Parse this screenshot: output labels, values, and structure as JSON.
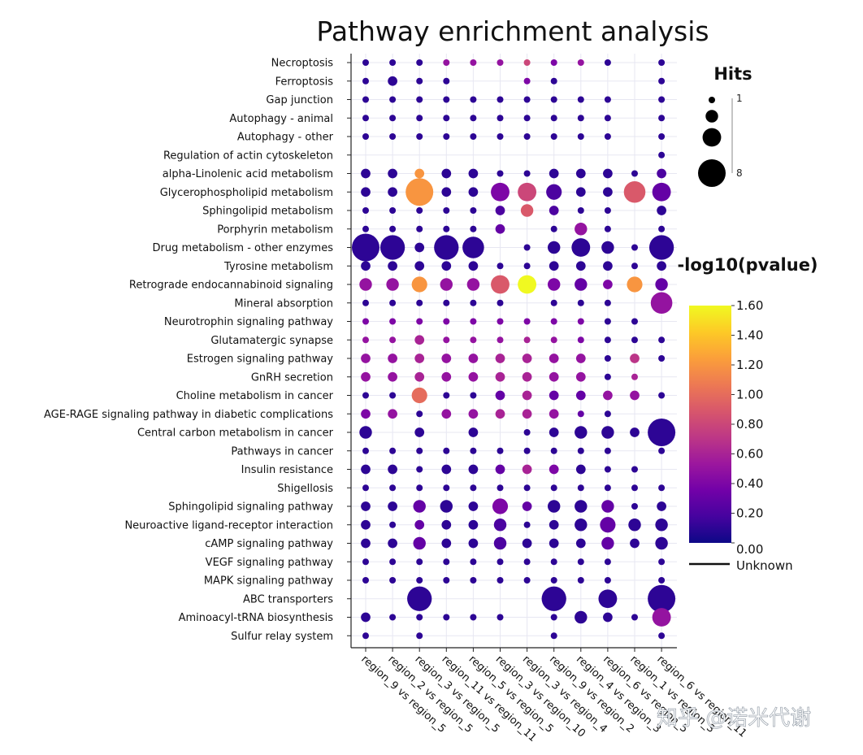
{
  "chart_data": {
    "type": "scatter",
    "title": "Pathway enrichment analysis",
    "pathways": [
      "Necroptosis",
      "Ferroptosis",
      "Gap junction",
      "Autophagy - animal",
      "Autophagy - other",
      "Regulation of actin cytoskeleton",
      "alpha-Linolenic acid metabolism",
      "Glycerophospholipid metabolism",
      "Sphingolipid metabolism",
      "Porphyrin metabolism",
      "Drug metabolism - other enzymes",
      "Tyrosine metabolism",
      "Retrograde endocannabinoid signaling",
      "Mineral absorption",
      "Neurotrophin signaling pathway",
      "Glutamatergic synapse",
      "Estrogen signaling pathway",
      "GnRH secretion",
      "Choline metabolism in cancer",
      "AGE-RAGE signaling pathway in diabetic complications",
      "Central carbon metabolism in cancer",
      "Pathways in cancer",
      "Insulin resistance",
      "Shigellosis",
      "Sphingolipid signaling pathway",
      "Neuroactive ligand-receptor interaction",
      "cAMP signaling pathway",
      "VEGF signaling pathway",
      "MAPK signaling pathway",
      "ABC transporters",
      "Aminoacyl-tRNA biosynthesis",
      "Sulfur relay system"
    ],
    "comparisons": [
      "region_9 vs region_5",
      "region_2 vs region_5",
      "region_3 vs region_5",
      "region_11 vs region_11",
      "region_5 vs region_5",
      "region_3 vs region_10",
      "region_3 vs region_4",
      "region_9 vs region_2",
      "region_4 vs region_3",
      "region_6 vs region_5",
      "region_1 vs region_3",
      "region_6 vs region_11"
    ],
    "point_encoding": "hits:neglog10p",
    "points_rows": [
      "1:0.1 1:0.1 1:0.1 1:0.5 1:0.5 1:0.5 1:0.8 1:0.4 1:0.5 1:0.1 - 1:0.1",
      "1:0.1 2:0.1 1:0.1 1:0.1 - - 1:0.4 1:0.1 - - - 1:0.1",
      "1:0.1 1:0.1 1:0.1 1:0.1 1:0.1 1:0.1 1:0.1 1:0.1 1:0.1 1:0.1 - 1:0.1",
      "1:0.1 1:0.1 1:0.1 1:0.1 1:0.1 1:0.1 1:0.1 1:0.1 1:0.1 1:0.1 - 1:0.1",
      "1:0.1 1:0.1 1:0.1 1:0.1 1:0.1 1:0.1 1:0.1 1:0.1 1:0.1 1:0.1 - 1:0.1",
      "- - - - - - - - - - - 1:0.1",
      "2:0.1 2:0.1 2:1.2 2:0.1 2:0.1 1:0.1 1:0.1 2:0.1 2:0.1 2:0.1 1:0.1 2:0.2",
      "2:0.1 2:0.1 8:1.2 2:0.1 2:0.1 5:0.4 5:0.8 4:0.2 2:0.1 2:0.1 6:0.9 5:0.3",
      "1:0.1 1:0.1 1:0.1 1:0.1 1:0.1 2:0.2 3:0.9 2:0.2 1:0.1 1:0.1 - 2:0.1",
      "1:0.1 1:0.1 1:0.1 1:0.1 1:0.1 2:0.3 - 1:0.1 3:0.5 1:0.1 - 1:0.1",
      "8:0.1 7:0.1 2:0.1 7:0.1 6:0.1 - 1:0.1 3:0.1 5:0.1 3:0.1 1:0.1 7:0.1",
      "2:0.1 2:0.1 2:0.1 2:0.1 2:0.1 1:0.1 1:0.1 2:0.1 2:0.1 2:0.1 1:0.1 2:0.1",
      "3:0.5 3:0.5 4:1.2 3:0.5 3:0.5 5:0.9 5:1.6 3:0.4 3:0.3 2:0.4 4:1.2 3:0.3",
      "1:0.1 1:0.1 1:0.1 1:0.1 1:0.1 1:0.1 - 1:0.1 1:0.1 1:0.1 - 6:0.5",
      "1:0.4 1:0.4 1:0.4 1:0.4 1:0.4 1:0.4 1:0.4 1:0.4 1:0.4 1:0.1 1:0.1 -",
      "1:0.5 1:0.5 2:0.6 1:0.5 1:0.5 1:0.5 1:0.6 1:0.5 1:0.4 1:0.1 1:0.1 1:0.1",
      "2:0.5 2:0.5 2:0.6 2:0.5 2:0.5 2:0.6 2:0.6 2:0.5 2:0.5 1:0.1 2:0.7 1:0.1",
      "2:0.5 2:0.5 2:0.6 2:0.5 2:0.5 2:0.6 2:0.6 2:0.5 2:0.5 1:0.1 1:0.6 -",
      "1:0.1 1:0.1 4:1.0 1:0.1 1:0.1 2:0.3 2:0.6 2:0.3 2:0.3 2:0.5 2:0.5 1:0.1",
      "2:0.4 2:0.5 1:0.1 2:0.5 2:0.5 2:0.6 2:0.6 2:0.5 1:0.3 1:0.1 - -",
      "3:0.1 - 2:0.1 - 2:0.1 - 1:0.1 2:0.1 3:0.1 3:0.1 2:0.1 8:0.1",
      "1:0.1 1:0.1 1:0.1 1:0.1 1:0.1 1:0.1 1:0.1 1:0.1 1:0.1 1:0.1 - 1:0.1",
      "2:0.1 2:0.1 1:0.1 2:0.1 2:0.1 2:0.3 2:0.6 2:0.4 2:0.1 1:0.1 1:0.1 -",
      "1:0.1 1:0.1 1:0.1 1:0.1 1:0.1 1:0.1 1:0.1 1:0.1 1:0.1 1:0.1 1:0.1 1:0.1",
      "2:0.1 2:0.1 3:0.3 3:0.1 2:0.1 4:0.4 2:0.3 3:0.1 3:0.1 3:0.3 1:0.1 2:0.1",
      "2:0.1 1:0.1 2:0.3 2:0.1 2:0.1 3:0.2 1:0.1 2:0.1 3:0.1 4:0.3 3:0.1 3:0.1",
      "2:0.1 2:0.1 3:0.3 2:0.1 2:0.1 3:0.2 2:0.1 2:0.1 2:0.1 3:0.3 2:0.1 3:0.1",
      "1:0.1 1:0.1 1:0.1 1:0.1 1:0.1 1:0.1 1:0.1 1:0.1 1:0.1 1:0.1 - 1:0.1",
      "1:0.1 1:0.1 1:0.1 1:0.1 1:0.1 1:0.1 1:0.1 1:0.1 1:0.1 1:0.1 - 1:0.1",
      "- - 7:0.1 - - - - 7:0.1 - 5:0.1 - 8:0.1",
      "2:0.1 1:0.1 1:0.1 1:0.1 1:0.1 1:0.1 - 1:0.1 3:0.1 2:0.1 1:0.1 5:0.5",
      "1:0.1 - 1:0.1 - - - - 1:0.1 - - - 1:0.1"
    ],
    "size_legend": {
      "title": "Hits",
      "min_label": "1",
      "max_label": "8",
      "min": 1,
      "max": 8
    },
    "color_legend": {
      "title": "-log10(pvalue)",
      "ticks": [
        "1.60",
        "1.40",
        "1.20",
        "1.00",
        "0.80",
        "0.60",
        "0.40",
        "0.20",
        "0.00"
      ],
      "min": 0,
      "max": 1.6,
      "unknown_label": "Unknown"
    },
    "colors": {
      "colormap": [
        "#0d0887",
        "#46039f",
        "#7201a8",
        "#9c179e",
        "#bd3786",
        "#d8576b",
        "#ed7953",
        "#fb9f3a",
        "#fdca26",
        "#f0f921"
      ],
      "grid": "#e7e7f2",
      "axis": "#222222"
    }
  },
  "watermark": "知乎 @诺米代谢"
}
